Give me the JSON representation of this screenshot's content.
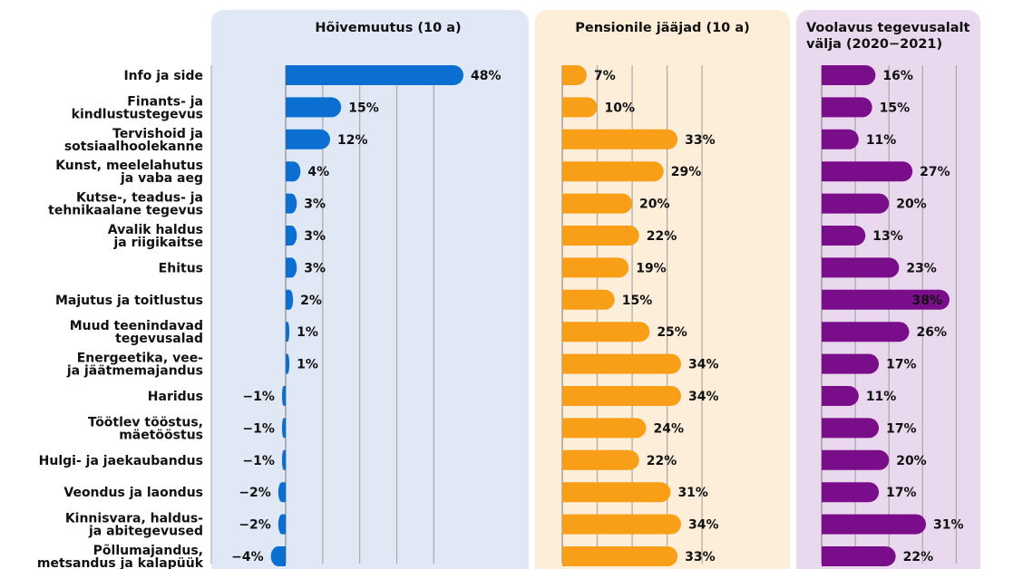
{
  "chart_data": {
    "type": "bar",
    "categories": [
      "Info ja side",
      "Finants- ja\nkindlustustegevus",
      "Tervishoid ja\nsotsiaalhoolekanne",
      "Kunst, meelelahutus\nja vaba aeg",
      "Kutse-, teadus- ja\ntehnikaalane tegevus",
      "Avalik haldus\nja riigikaitse",
      "Ehitus",
      "Majutus ja toitlustus",
      "Muud teenindavad\ntegevusalad",
      "Energeetika, vee-\nja jäätmemajandus",
      "Haridus",
      "Töötlev tööstus,\nmäetööstus",
      "Hulgi- ja jaekaubandus",
      "Veondus ja laondus",
      "Kinnisvara, haldus-\nja abitegevused",
      "Põllumajandus,\nmetsandus ja kalapüük"
    ],
    "series": [
      {
        "name": "Hõivemuutus (10 a)",
        "color": "#0a6fd1",
        "panel_bg": "#e1e8f5",
        "values": [
          48,
          15,
          12,
          4,
          3,
          3,
          3,
          2,
          1,
          1,
          -1,
          -1,
          -1,
          -2,
          -2,
          -4
        ],
        "labels": [
          "48%",
          "15%",
          "12%",
          "4%",
          "3%",
          "3%",
          "3%",
          "2%",
          "1%",
          "1%",
          "−1%",
          "−1%",
          "−1%",
          "−2%",
          "−2%",
          "−4%"
        ],
        "xlim": [
          -5,
          60
        ]
      },
      {
        "name": "Pensionile jääjad (10 a)",
        "color": "#f99e17",
        "panel_bg": "#fdeed9",
        "values": [
          7,
          10,
          33,
          29,
          20,
          22,
          19,
          15,
          25,
          34,
          34,
          24,
          22,
          31,
          34,
          33
        ],
        "labels": [
          "7%",
          "10%",
          "33%",
          "29%",
          "20%",
          "22%",
          "19%",
          "15%",
          "25%",
          "34%",
          "34%",
          "24%",
          "22%",
          "31%",
          "34%",
          "33%"
        ],
        "xlim": [
          0,
          60
        ]
      },
      {
        "name": "Voolavus tegevusalalt\nvälja (2020−2021)",
        "color": "#7a0d8a",
        "panel_bg": "#ead8ee",
        "values": [
          16,
          15,
          11,
          27,
          20,
          13,
          23,
          38,
          26,
          17,
          11,
          17,
          20,
          17,
          31,
          22
        ],
        "labels": [
          "16%",
          "15%",
          "11%",
          "27%",
          "20%",
          "13%",
          "23%",
          "38%",
          "26%",
          "17%",
          "11%",
          "17%",
          "20%",
          "17%",
          "31%",
          "22%"
        ],
        "xlim": [
          0,
          40
        ]
      }
    ],
    "grid": true,
    "legend": "none"
  }
}
